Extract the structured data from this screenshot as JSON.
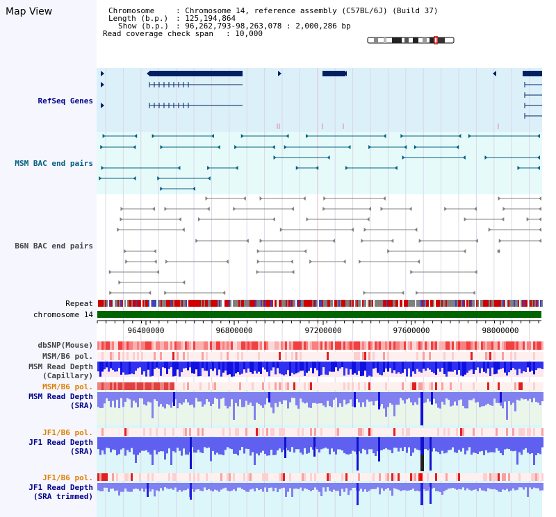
{
  "title": "Map View",
  "info": {
    "chromosome_key": "Chromosome",
    "chromosome_val": "Chromosome 14, reference assembly (C57BL/6J) (Build 37)",
    "length_key": "Length (b.p.)",
    "length_val": "125,194,864",
    "show_key": "Show (b.p.)",
    "show_val": "96,262,793-98,263,078 : 2,000,286 bp",
    "span_key": "Read coverage check span",
    "span_val": "10,000"
  },
  "tracks": {
    "refseq": "RefSeq Genes",
    "msm_bac": "MSM BAC end pairs",
    "b6n_bac": "B6N BAC end pairs",
    "repeat": "Repeat",
    "chromosome": "chromosome 14",
    "dbsnp": "dbSNP(Mouse)",
    "msm_b6_pol_1": "MSM/B6 pol.",
    "msm_depth_cap": "MSM Read Depth\n(Capillary)",
    "msm_b6_pol_2": "MSM/B6 pol.",
    "msm_depth_sra": "MSM Read Depth\n(SRA)",
    "jf1_b6_pol_1": "JF1/B6 pol.",
    "jf1_depth_sra": "JF1 Read Depth\n(SRA)",
    "jf1_b6_pol_2": "JF1/B6 pol.",
    "jf1_depth_trim": "JF1 Read Depth\n(SRA trimmed)"
  },
  "axis_ticks": [
    "96400000",
    "96800000",
    "97200000",
    "97600000",
    "98000000"
  ],
  "colors": {
    "refseq_bg": "#dcf0fa",
    "msm_bac_bg": "#e6fafa",
    "chrom_bar": "#006400",
    "gene": "#002060",
    "msm_bac": "#006080",
    "b6n_bac": "#808080",
    "depth_blue": "#2020e0",
    "sra_blue": "#8080f0",
    "label_navy": "#00008b",
    "label_teal": "#005f80",
    "label_orange": "#e08000",
    "label_gray": "#444444"
  }
}
